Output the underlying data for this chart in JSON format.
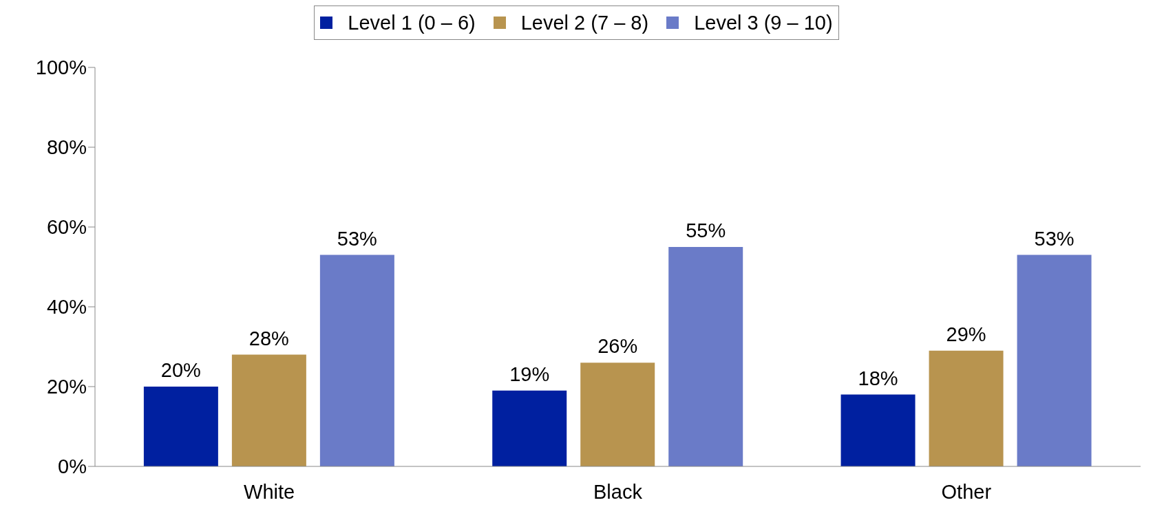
{
  "chart_data": {
    "type": "bar",
    "categories": [
      "White",
      "Black",
      "Other"
    ],
    "series": [
      {
        "name": "Level 1 (0 – 6)",
        "color": "#0020a0",
        "values": [
          20,
          19,
          18
        ],
        "value_labels": [
          "20%",
          "19%",
          "18%"
        ]
      },
      {
        "name": "Level 2 (7 – 8)",
        "color": "#b8944f",
        "values": [
          28,
          26,
          29
        ],
        "value_labels": [
          "28%",
          "26%",
          "29%"
        ]
      },
      {
        "name": "Level 3 (9 – 10)",
        "color": "#6a7bc8",
        "values": [
          53,
          55,
          53
        ],
        "value_labels": [
          "53%",
          "55%",
          "53%"
        ]
      }
    ],
    "ylim": [
      0,
      100
    ],
    "yticks": [
      {
        "value": 0,
        "label": "0%"
      },
      {
        "value": 20,
        "label": "20%"
      },
      {
        "value": 40,
        "label": "40%"
      },
      {
        "value": 60,
        "label": "60%"
      },
      {
        "value": 80,
        "label": "80%"
      },
      {
        "value": 100,
        "label": "100%"
      }
    ],
    "grid": false,
    "legend": "top"
  }
}
